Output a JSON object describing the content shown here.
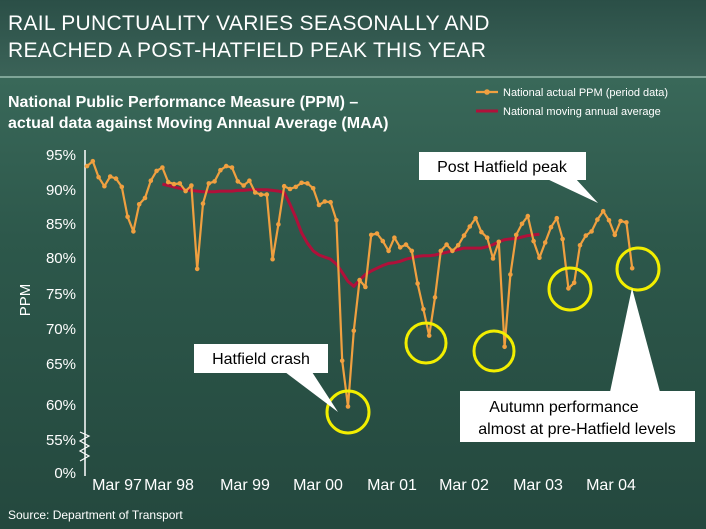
{
  "title_lines": [
    "RAIL PUNCTUALITY VARIES SEASONALLY AND",
    "REACHED A POST-HATFIELD PEAK THIS YEAR"
  ],
  "subtitle_lines": [
    "National Public Performance Measure (PPM) –",
    "actual data against Moving Annual Average (MAA)"
  ],
  "source": "Source: Department of Transport",
  "colors": {
    "actual": "#f0a040",
    "maa": "#b0103a",
    "highlight": "#f2ee00",
    "callout_bg": "#ffffff"
  },
  "chart_data": {
    "type": "line",
    "ylabel": "PPM",
    "yticks": [
      "95%",
      "90%",
      "85%",
      "80%",
      "75%",
      "70%",
      "65%",
      "60%",
      "55%",
      "0%"
    ],
    "y_tick_values": [
      95,
      90,
      85,
      80,
      75,
      70,
      65,
      60,
      55,
      0
    ],
    "ylim": [
      55,
      95
    ],
    "y_axis_break": "between 0% and 55%",
    "xticks": [
      "Mar 97",
      "Mar 98",
      "Mar 99",
      "Mar 00",
      "Mar 01",
      "Mar 02",
      "Mar 03",
      "Mar 04"
    ],
    "grid": false,
    "legend_position": "top-right",
    "series": [
      {
        "name": "National actual PPM (period data)",
        "marker": "circle",
        "values": [
          92.4,
          93.1,
          90.8,
          89.5,
          90.9,
          90.6,
          89.4,
          85.1,
          83.0,
          86.9,
          87.8,
          90.3,
          91.7,
          92.2,
          90.1,
          89.8,
          89.9,
          88.8,
          89.6,
          77.6,
          87.0,
          89.9,
          90.2,
          91.8,
          92.4,
          92.2,
          90.2,
          89.6,
          90.3,
          88.6,
          88.3,
          88.3,
          79.0,
          84.0,
          89.5,
          89.1,
          89.4,
          90.0,
          89.9,
          89.2,
          86.8,
          87.3,
          87.2,
          84.6,
          64.4,
          57.8,
          68.7,
          76.0,
          75.0,
          82.5,
          82.7,
          81.6,
          80.2,
          82.1,
          80.7,
          81.1,
          80.2,
          75.5,
          71.8,
          68.0,
          73.5,
          80.2,
          81.1,
          80.2,
          81.0,
          82.4,
          83.7,
          84.9,
          82.9,
          82.1,
          79.1,
          81.5,
          66.4,
          76.8,
          82.5,
          84.1,
          85.2,
          81.6,
          79.2,
          81.4,
          83.6,
          84.9,
          81.9,
          74.8,
          75.6,
          81.0,
          82.4,
          83.0,
          84.7,
          85.9,
          84.6,
          82.5,
          84.5,
          84.3,
          77.7
        ]
      },
      {
        "name": "National moving annual average",
        "values": [
          89.8,
          89.6,
          89.4,
          89.2,
          89.0,
          88.9,
          88.8,
          88.7,
          88.7,
          88.7,
          88.8,
          88.8,
          88.8,
          88.9,
          88.9,
          89.0,
          89.0,
          89.0,
          89.0,
          88.9,
          88.8,
          88.6,
          86.9,
          85.0,
          82.8,
          81.3,
          80.2,
          79.6,
          79.3,
          79.0,
          78.3,
          77.1,
          75.8,
          75.1,
          76.0,
          76.8,
          77.3,
          77.7,
          78.1,
          78.4,
          78.5,
          78.7,
          79.0,
          79.2,
          79.4,
          79.5,
          79.5,
          79.6,
          79.8,
          80.0,
          80.2,
          80.4,
          80.6,
          80.6,
          80.6,
          80.6,
          80.8,
          81.1,
          81.5,
          81.8,
          81.9,
          82.0,
          82.2,
          82.4,
          82.5,
          82.6
        ]
      }
    ],
    "annotations": [
      "Post Hatfield peak",
      "Hatfield crash",
      "Autumn performance almost at pre-Hatfield levels"
    ]
  }
}
